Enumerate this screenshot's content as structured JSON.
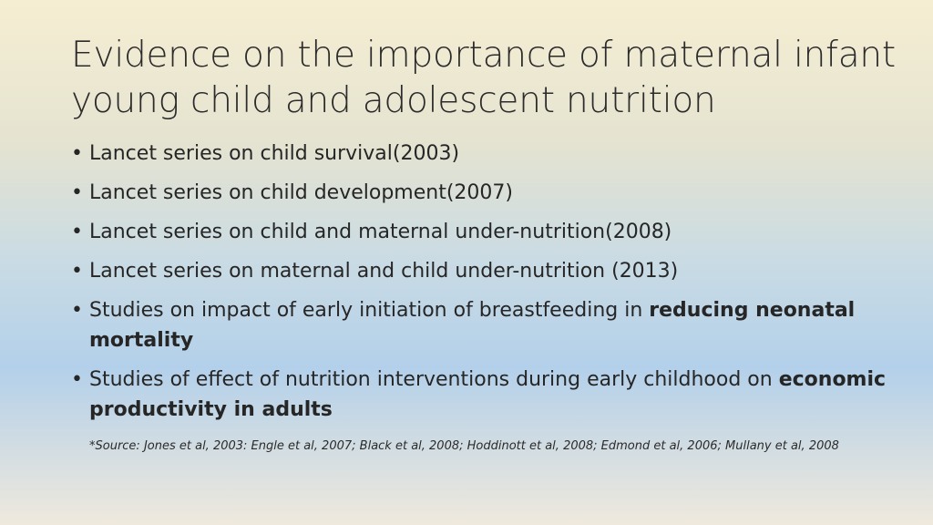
{
  "slide": {
    "title": "Evidence on the importance of maternal infant young child and adolescent nutrition",
    "bullets": [
      {
        "text": "Lancet series on child survival(2003)",
        "bold": ""
      },
      {
        "text": "Lancet series on child development(2007)",
        "bold": ""
      },
      {
        "text": "Lancet series on child and maternal under-nutrition(2008)",
        "bold": ""
      },
      {
        "text": "Lancet series on maternal and child under-nutrition (2013)",
        "bold": ""
      },
      {
        "text": "Studies on impact of early initiation of breastfeeding in ",
        "bold": "reducing neonatal mortality"
      },
      {
        "text": "Studies of effect of nutrition interventions during early childhood on ",
        "bold": "economic productivity in adults"
      }
    ],
    "source": "*Source: Jones et al, 2003: Engle et al, 2007; Black et al, 2008; Hoddinott et al, 2008; Edmond et al, 2006; Mullany et al, 2008"
  }
}
